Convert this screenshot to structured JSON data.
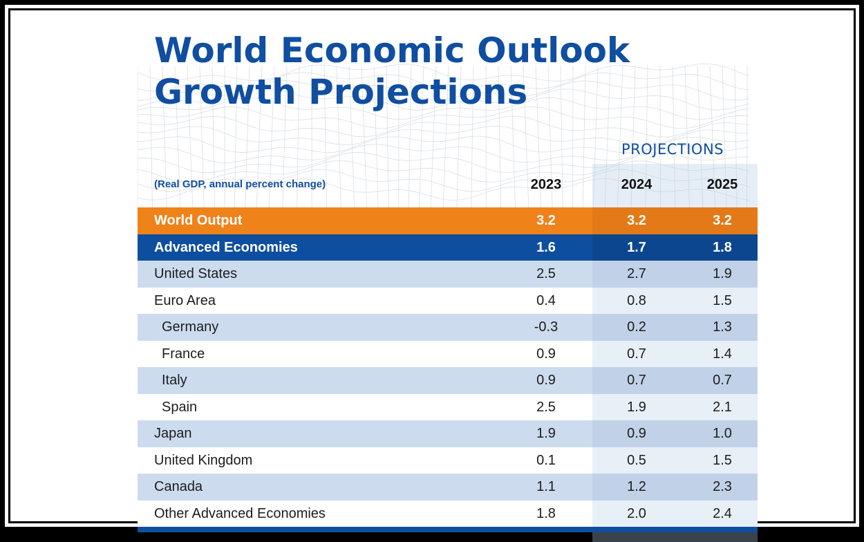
{
  "chart_data": {
    "type": "table",
    "title": "World Economic Outlook Growth Projections",
    "title_lines": [
      "World Economic Outlook",
      "Growth Projections"
    ],
    "subtitle": "(Real GDP, annual percent change)",
    "projections_label": "PROJECTIONS",
    "columns": [
      "2023",
      "2024",
      "2025"
    ],
    "rows": [
      {
        "label": "World Output",
        "values": [
          "3.2",
          "3.2",
          "3.2"
        ],
        "style": "world"
      },
      {
        "label": "Advanced Economies",
        "values": [
          "1.6",
          "1.7",
          "1.8"
        ],
        "style": "adv"
      },
      {
        "label": "United States",
        "values": [
          "2.5",
          "2.7",
          "1.9"
        ],
        "style": "shade"
      },
      {
        "label": "Euro Area",
        "values": [
          "0.4",
          "0.8",
          "1.5"
        ],
        "style": "plain"
      },
      {
        "label": "Germany",
        "values": [
          "-0.3",
          "0.2",
          "1.3"
        ],
        "style": "shade",
        "indent": true
      },
      {
        "label": "France",
        "values": [
          "0.9",
          "0.7",
          "1.4"
        ],
        "style": "plain",
        "indent": true
      },
      {
        "label": "Italy",
        "values": [
          "0.9",
          "0.7",
          "0.7"
        ],
        "style": "shade",
        "indent": true
      },
      {
        "label": "Spain",
        "values": [
          "2.5",
          "1.9",
          "2.1"
        ],
        "style": "plain",
        "indent": true
      },
      {
        "label": "Japan",
        "values": [
          "1.9",
          "0.9",
          "1.0"
        ],
        "style": "shade"
      },
      {
        "label": "United Kingdom",
        "values": [
          "0.1",
          "0.5",
          "1.5"
        ],
        "style": "plain"
      },
      {
        "label": "Canada",
        "values": [
          "1.1",
          "1.2",
          "2.3"
        ],
        "style": "shade"
      },
      {
        "label": "Other Advanced Economies",
        "values": [
          "1.8",
          "2.0",
          "2.4"
        ],
        "style": "plain"
      }
    ]
  },
  "colors": {
    "title_blue": "#0f4ea1",
    "world_orange": "#f0821a",
    "advanced_blue": "#0e4e9f",
    "row_shade": "#ccdcee"
  }
}
